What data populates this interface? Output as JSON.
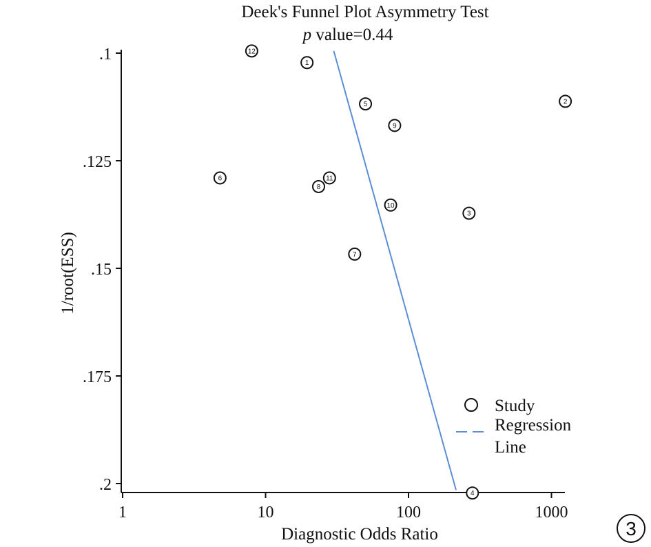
{
  "chart_data": {
    "type": "scatter",
    "title_line1": "Deek's Funnel Plot Asymmetry Test",
    "title_p": "p",
    "title_value": " value=0.44",
    "xlabel": "Diagnostic Odds Ratio",
    "ylabel": "1/root(ESS)",
    "x_scale": "log",
    "xlim": [
      1,
      1300
    ],
    "ylim": [
      0.0985,
      0.2025
    ],
    "y_inverted": true,
    "x_ticks": [
      {
        "value": 1,
        "label": "1"
      },
      {
        "value": 10,
        "label": "10"
      },
      {
        "value": 100,
        "label": "100"
      },
      {
        "value": 1000,
        "label": "1000"
      }
    ],
    "y_ticks": [
      {
        "value": 0.1,
        "label": ".1"
      },
      {
        "value": 0.125,
        "label": ".125"
      },
      {
        "value": 0.15,
        "label": ".15"
      },
      {
        "value": 0.175,
        "label": ".175"
      },
      {
        "value": 0.2,
        "label": ".2"
      }
    ],
    "points": [
      {
        "label": "1",
        "x": 19.5,
        "y": 0.1022
      },
      {
        "label": "2",
        "x": 1250,
        "y": 0.1112
      },
      {
        "label": "3",
        "x": 265,
        "y": 0.1372
      },
      {
        "label": "4",
        "x": 280,
        "y": 0.2022
      },
      {
        "label": "5",
        "x": 50,
        "y": 0.1118
      },
      {
        "label": "6",
        "x": 4.8,
        "y": 0.129
      },
      {
        "label": "7",
        "x": 42,
        "y": 0.1467
      },
      {
        "label": "8",
        "x": 23.5,
        "y": 0.131
      },
      {
        "label": "9",
        "x": 80,
        "y": 0.1168
      },
      {
        "label": "10",
        "x": 75,
        "y": 0.1353
      },
      {
        "label": "11",
        "x": 28,
        "y": 0.129
      },
      {
        "label": "12",
        "x": 8,
        "y": 0.0995
      }
    ],
    "regression_line": {
      "x": [
        30,
        215
      ],
      "y": [
        0.0995,
        0.2015
      ],
      "color": "#5b8ed6"
    },
    "legend": {
      "position": "bottom-right",
      "entries": [
        {
          "type": "marker",
          "label": "Study"
        },
        {
          "type": "line",
          "label_line1": "Regression",
          "label_line2": "Line"
        }
      ]
    },
    "panel_number": "3"
  }
}
